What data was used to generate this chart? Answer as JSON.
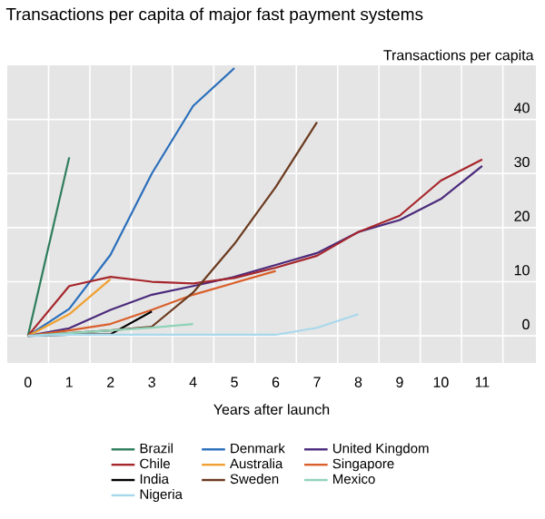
{
  "chart_data": {
    "type": "line",
    "title": "Transactions per capita of major fast payment systems",
    "xlabel": "Years after launch",
    "ylabel": "Transactions per capita",
    "xlim": [
      -0.5,
      12.3
    ],
    "ylim": [
      -5,
      50
    ],
    "xticks": [
      {
        "value": 0,
        "label": "0"
      },
      {
        "value": 1,
        "label": "1"
      },
      {
        "value": 2,
        "label": "2"
      },
      {
        "value": 3,
        "label": "3"
      },
      {
        "value": 4,
        "label": "4"
      },
      {
        "value": 5,
        "label": "5"
      },
      {
        "value": 6,
        "label": "6"
      },
      {
        "value": 7,
        "label": "7"
      },
      {
        "value": 8,
        "label": "8"
      },
      {
        "value": 9,
        "label": "9"
      },
      {
        "value": 10,
        "label": "10"
      },
      {
        "value": 11,
        "label": "11"
      },
      {
        "value": 0.5,
        "label": null
      },
      {
        "value": 1.5,
        "label": null
      },
      {
        "value": 2.5,
        "label": null
      },
      {
        "value": 3.5,
        "label": null
      },
      {
        "value": 4.5,
        "label": null
      },
      {
        "value": 5.5,
        "label": null
      },
      {
        "value": 6.5,
        "label": null
      },
      {
        "value": 7.5,
        "label": null
      },
      {
        "value": 8.5,
        "label": null
      },
      {
        "value": 9.5,
        "label": null
      },
      {
        "value": 10.5,
        "label": null
      },
      {
        "value": 11.5,
        "label": null
      }
    ],
    "yticks": [
      0,
      10,
      20,
      30,
      40
    ],
    "grid": true,
    "legend": "bottom",
    "marker": "none",
    "line_style": "solid",
    "series": [
      {
        "name": "Brazil",
        "color": "#2e7d5b",
        "x": [
          0,
          1
        ],
        "values": [
          0,
          33
        ]
      },
      {
        "name": "Denmark",
        "color": "#2a6ebb",
        "x": [
          0,
          1,
          2,
          3,
          4,
          5
        ],
        "values": [
          0,
          5,
          15,
          30,
          42.5,
          49.5
        ]
      },
      {
        "name": "United Kingdom",
        "color": "#4b2a7b",
        "x": [
          0,
          1,
          2,
          3,
          4,
          5,
          6,
          7,
          8,
          9,
          10,
          11
        ],
        "values": [
          0,
          1.4,
          4.8,
          7.6,
          9.2,
          10.9,
          13.1,
          15.3,
          19.2,
          21.4,
          25.3,
          31.4
        ]
      },
      {
        "name": "Chile",
        "color": "#a6262c",
        "x": [
          0,
          1,
          2,
          3,
          4,
          5,
          6,
          7,
          8,
          9,
          10,
          11
        ],
        "values": [
          0,
          9.2,
          10.9,
          10,
          9.7,
          10.7,
          12.6,
          14.8,
          19.2,
          22.2,
          28.7,
          32.6
        ]
      },
      {
        "name": "Australia",
        "color": "#f0a030",
        "x": [
          0,
          1,
          2
        ],
        "values": [
          0,
          4,
          10.5
        ]
      },
      {
        "name": "Singapore",
        "color": "#d95f2b",
        "x": [
          0,
          1,
          2,
          3,
          4,
          5,
          6
        ],
        "values": [
          0,
          1,
          2.2,
          4.8,
          7.6,
          9.8,
          12
        ]
      },
      {
        "name": "India",
        "color": "#000000",
        "x": [
          0,
          1,
          2,
          3
        ],
        "values": [
          0,
          0.2,
          0.3,
          4.5
        ]
      },
      {
        "name": "Sweden",
        "color": "#6b3a1f",
        "x": [
          0,
          1,
          2,
          3,
          4,
          5,
          6,
          7
        ],
        "values": [
          0,
          0.5,
          1,
          1.7,
          8,
          17,
          27.5,
          39.5
        ]
      },
      {
        "name": "Mexico",
        "color": "#8fd3b8",
        "x": [
          0,
          1,
          2,
          3,
          4
        ],
        "values": [
          0,
          0.5,
          1,
          1.5,
          2.2
        ]
      },
      {
        "name": "Nigeria",
        "color": "#a8d8ec",
        "x": [
          0,
          1,
          2,
          3,
          4,
          5,
          6,
          7,
          8
        ],
        "values": [
          0,
          0.2,
          0.2,
          0.2,
          0.2,
          0.2,
          0.2,
          1.5,
          4
        ]
      }
    ]
  }
}
